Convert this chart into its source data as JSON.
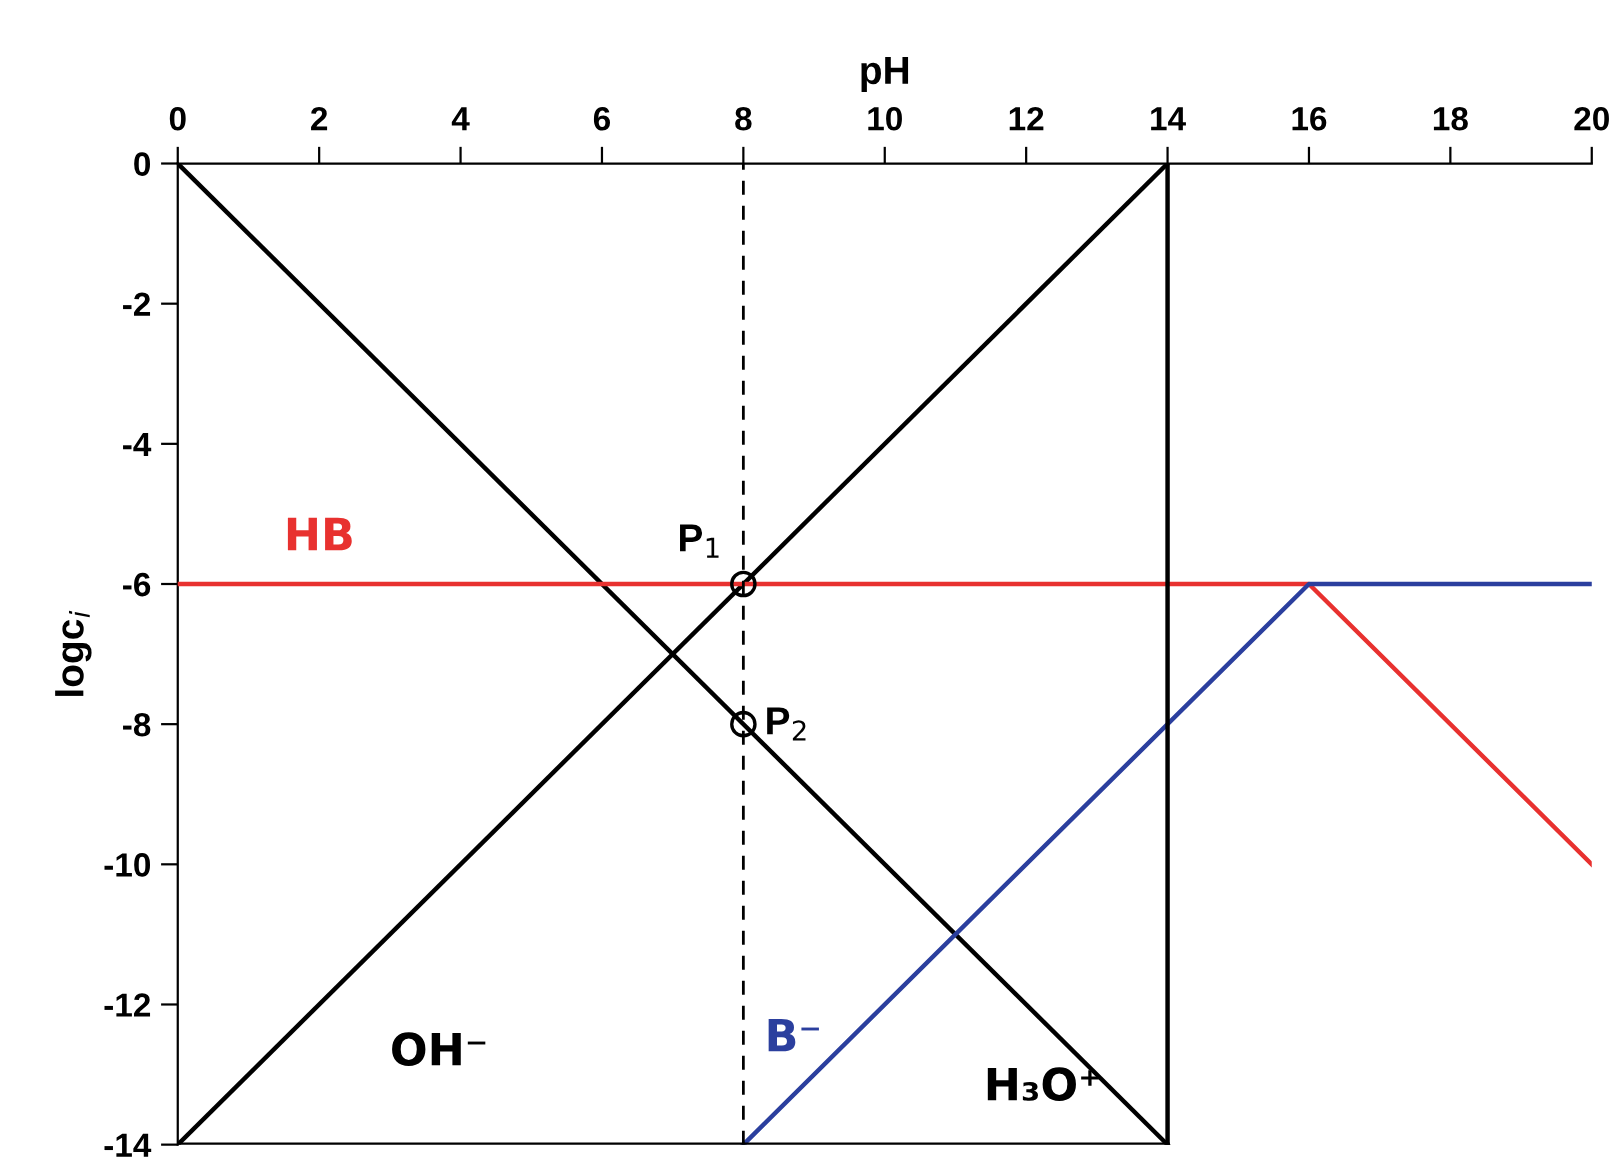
{
  "chart_data": {
    "type": "line",
    "xlabel": "pH",
    "ylabel": "logc$_{i}$",
    "xlim": [
      0,
      20
    ],
    "ylim": [
      -14,
      0
    ],
    "xticks": [
      0,
      2,
      4,
      6,
      8,
      10,
      12,
      14,
      16,
      18,
      20
    ],
    "yticks": [
      0,
      -2,
      -4,
      -6,
      -8,
      -10,
      -12,
      -14
    ],
    "grid": false,
    "legend": false,
    "series": [
      {
        "name": "H₃O⁺",
        "color": "#000000",
        "x": [
          0,
          14
        ],
        "values": [
          0,
          -14
        ]
      },
      {
        "name": "OH⁻",
        "color": "#000000",
        "x": [
          0,
          14
        ],
        "values": [
          -14,
          0
        ]
      },
      {
        "name": "HB",
        "color": "#e8312f",
        "x": [
          0,
          16,
          20
        ],
        "values": [
          -6,
          -6,
          -10
        ]
      },
      {
        "name": "B⁻",
        "color": "#2b3f9e",
        "x": [
          8,
          16,
          20
        ],
        "values": [
          -14,
          -6,
          -6
        ]
      },
      {
        "color": "#000000",
        "x": [
          0,
          14
        ],
        "values": [
          -14,
          -14
        ]
      },
      {
        "type": "scatter",
        "color": "#000000",
        "x": [
          8,
          8
        ],
        "values": [
          -6,
          -8
        ],
        "marker": "circle"
      }
    ],
    "ref_lines": [
      {
        "axis": "x",
        "value": 14,
        "color": "#000000",
        "line_style": "solid"
      },
      {
        "axis": "x",
        "value": 8,
        "color": "#000000",
        "line_style": "dashed"
      }
    ],
    "annotations": [
      {
        "text": "P$_{1}$",
        "x": 8,
        "y": -6
      },
      {
        "text": "P$_{2}$",
        "x": 8,
        "y": -8
      }
    ]
  }
}
